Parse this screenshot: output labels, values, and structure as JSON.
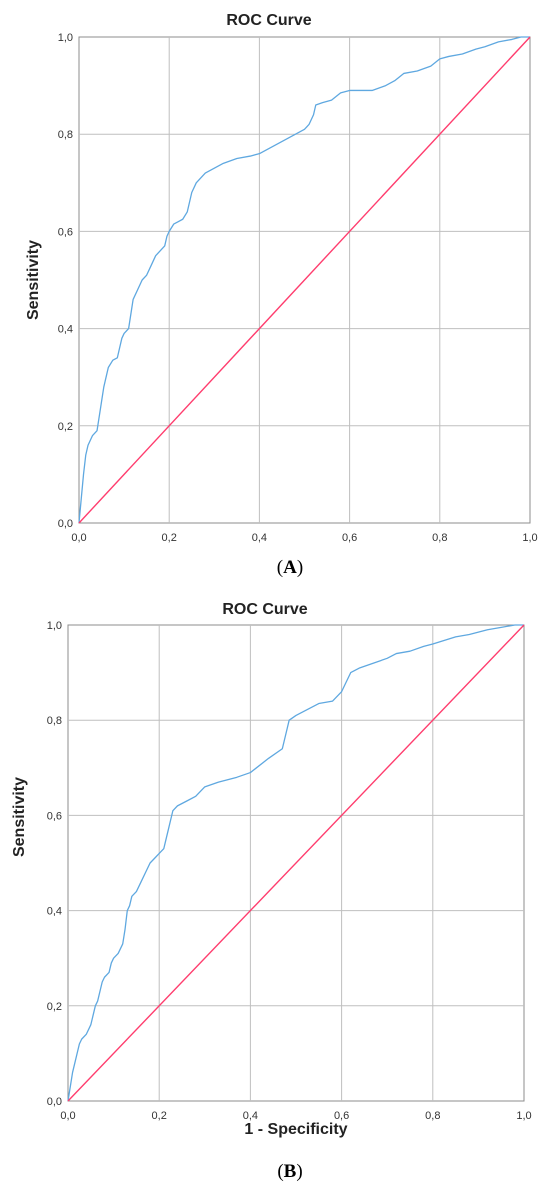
{
  "colors": {
    "roc_curve": "#5fa8e0",
    "reference_line": "#ff3d6e",
    "grid": "#bfbfbf",
    "frame": "#8c8c8c"
  },
  "chart_data": [
    {
      "id": "A",
      "type": "line",
      "title": "ROC Curve",
      "xlabel": "",
      "ylabel": "Sensitivity",
      "panel_label": "(A)",
      "panel_letter": "A",
      "xlim": [
        0,
        1
      ],
      "ylim": [
        0,
        1
      ],
      "xticks": [
        "0,0",
        "0,2",
        "0,4",
        "0,6",
        "0,8",
        "1,0"
      ],
      "yticks": [
        "0,0",
        "0,2",
        "0,4",
        "0,6",
        "0,8",
        "1,0"
      ],
      "grid": true,
      "series": [
        {
          "kind": "roc",
          "points": [
            [
              0.0,
              0.0
            ],
            [
              0.005,
              0.05
            ],
            [
              0.01,
              0.1
            ],
            [
              0.015,
              0.14
            ],
            [
              0.02,
              0.16
            ],
            [
              0.03,
              0.18
            ],
            [
              0.04,
              0.19
            ],
            [
              0.045,
              0.22
            ],
            [
              0.05,
              0.25
            ],
            [
              0.055,
              0.28
            ],
            [
              0.06,
              0.3
            ],
            [
              0.065,
              0.32
            ],
            [
              0.075,
              0.335
            ],
            [
              0.085,
              0.34
            ],
            [
              0.09,
              0.36
            ],
            [
              0.095,
              0.38
            ],
            [
              0.1,
              0.39
            ],
            [
              0.11,
              0.4
            ],
            [
              0.115,
              0.43
            ],
            [
              0.12,
              0.46
            ],
            [
              0.13,
              0.48
            ],
            [
              0.14,
              0.5
            ],
            [
              0.15,
              0.51
            ],
            [
              0.16,
              0.53
            ],
            [
              0.17,
              0.55
            ],
            [
              0.18,
              0.56
            ],
            [
              0.19,
              0.57
            ],
            [
              0.195,
              0.59
            ],
            [
              0.2,
              0.6
            ],
            [
              0.21,
              0.615
            ],
            [
              0.22,
              0.62
            ],
            [
              0.23,
              0.625
            ],
            [
              0.24,
              0.64
            ],
            [
              0.245,
              0.66
            ],
            [
              0.25,
              0.68
            ],
            [
              0.26,
              0.7
            ],
            [
              0.27,
              0.71
            ],
            [
              0.28,
              0.72
            ],
            [
              0.3,
              0.73
            ],
            [
              0.32,
              0.74
            ],
            [
              0.35,
              0.75
            ],
            [
              0.38,
              0.755
            ],
            [
              0.4,
              0.76
            ],
            [
              0.44,
              0.78
            ],
            [
              0.48,
              0.8
            ],
            [
              0.5,
              0.81
            ],
            [
              0.51,
              0.82
            ],
            [
              0.52,
              0.84
            ],
            [
              0.525,
              0.86
            ],
            [
              0.54,
              0.865
            ],
            [
              0.56,
              0.87
            ],
            [
              0.58,
              0.885
            ],
            [
              0.6,
              0.89
            ],
            [
              0.65,
              0.89
            ],
            [
              0.68,
              0.9
            ],
            [
              0.7,
              0.91
            ],
            [
              0.72,
              0.925
            ],
            [
              0.75,
              0.93
            ],
            [
              0.78,
              0.94
            ],
            [
              0.8,
              0.955
            ],
            [
              0.82,
              0.96
            ],
            [
              0.85,
              0.965
            ],
            [
              0.88,
              0.975
            ],
            [
              0.9,
              0.98
            ],
            [
              0.93,
              0.99
            ],
            [
              0.96,
              0.995
            ],
            [
              0.98,
              1.0
            ],
            [
              1.0,
              1.0
            ]
          ]
        },
        {
          "kind": "reference",
          "points": [
            [
              0,
              0
            ],
            [
              1,
              1
            ]
          ]
        }
      ]
    },
    {
      "id": "B",
      "type": "line",
      "title": "ROC Curve",
      "xlabel": "1 - Specificity",
      "ylabel": "Sensitivity",
      "panel_label": "(B)",
      "panel_letter": "B",
      "xlim": [
        0,
        1
      ],
      "ylim": [
        0,
        1
      ],
      "xticks": [
        "0,0",
        "0,2",
        "0,4",
        "0,6",
        "0,8",
        "1,0"
      ],
      "yticks": [
        "0,0",
        "0,2",
        "0,4",
        "0,6",
        "0,8",
        "1,0"
      ],
      "grid": true,
      "series": [
        {
          "kind": "roc",
          "points": [
            [
              0.0,
              0.0
            ],
            [
              0.005,
              0.03
            ],
            [
              0.01,
              0.06
            ],
            [
              0.015,
              0.08
            ],
            [
              0.02,
              0.1
            ],
            [
              0.025,
              0.12
            ],
            [
              0.03,
              0.13
            ],
            [
              0.04,
              0.14
            ],
            [
              0.05,
              0.16
            ],
            [
              0.055,
              0.18
            ],
            [
              0.06,
              0.2
            ],
            [
              0.065,
              0.21
            ],
            [
              0.07,
              0.23
            ],
            [
              0.075,
              0.25
            ],
            [
              0.08,
              0.26
            ],
            [
              0.09,
              0.27
            ],
            [
              0.095,
              0.29
            ],
            [
              0.1,
              0.3
            ],
            [
              0.11,
              0.31
            ],
            [
              0.12,
              0.33
            ],
            [
              0.125,
              0.36
            ],
            [
              0.13,
              0.4
            ],
            [
              0.135,
              0.41
            ],
            [
              0.14,
              0.43
            ],
            [
              0.15,
              0.44
            ],
            [
              0.16,
              0.46
            ],
            [
              0.17,
              0.48
            ],
            [
              0.18,
              0.5
            ],
            [
              0.19,
              0.51
            ],
            [
              0.2,
              0.52
            ],
            [
              0.21,
              0.53
            ],
            [
              0.215,
              0.55
            ],
            [
              0.22,
              0.57
            ],
            [
              0.225,
              0.59
            ],
            [
              0.23,
              0.61
            ],
            [
              0.24,
              0.62
            ],
            [
              0.26,
              0.63
            ],
            [
              0.28,
              0.64
            ],
            [
              0.3,
              0.66
            ],
            [
              0.33,
              0.67
            ],
            [
              0.35,
              0.675
            ],
            [
              0.37,
              0.68
            ],
            [
              0.4,
              0.69
            ],
            [
              0.44,
              0.72
            ],
            [
              0.47,
              0.74
            ],
            [
              0.48,
              0.78
            ],
            [
              0.485,
              0.8
            ],
            [
              0.5,
              0.81
            ],
            [
              0.52,
              0.82
            ],
            [
              0.55,
              0.835
            ],
            [
              0.58,
              0.84
            ],
            [
              0.6,
              0.86
            ],
            [
              0.61,
              0.88
            ],
            [
              0.62,
              0.9
            ],
            [
              0.64,
              0.91
            ],
            [
              0.67,
              0.92
            ],
            [
              0.7,
              0.93
            ],
            [
              0.72,
              0.94
            ],
            [
              0.75,
              0.945
            ],
            [
              0.78,
              0.955
            ],
            [
              0.8,
              0.96
            ],
            [
              0.85,
              0.975
            ],
            [
              0.88,
              0.98
            ],
            [
              0.92,
              0.99
            ],
            [
              0.95,
              0.995
            ],
            [
              0.98,
              1.0
            ],
            [
              1.0,
              1.0
            ]
          ]
        },
        {
          "kind": "reference",
          "points": [
            [
              0,
              0
            ],
            [
              1,
              1
            ]
          ]
        }
      ]
    }
  ]
}
